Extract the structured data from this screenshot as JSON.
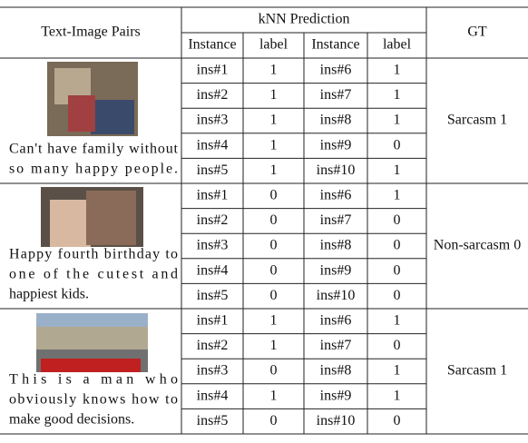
{
  "header": {
    "col1": "Text-Image Pairs",
    "knn": "kNN Prediction",
    "gt": "GT",
    "sub": [
      "Instance",
      "label",
      "Instance",
      "label"
    ]
  },
  "groups": [
    {
      "caption": [
        "Can't have family without",
        "so many happy people."
      ],
      "rows": [
        [
          "ins#1",
          1,
          "ins#6",
          1
        ],
        [
          "ins#2",
          1,
          "ins#7",
          1
        ],
        [
          "ins#3",
          1,
          "ins#8",
          1
        ],
        [
          "ins#4",
          1,
          "ins#9",
          0
        ],
        [
          "ins#5",
          1,
          "ins#10",
          1
        ]
      ],
      "gt": "Sarcasm 1"
    },
    {
      "caption": [
        "Happy fourth birthday to",
        "one of the cutest and",
        "happiest kids."
      ],
      "rows": [
        [
          "ins#1",
          0,
          "ins#6",
          1
        ],
        [
          "ins#2",
          0,
          "ins#7",
          0
        ],
        [
          "ins#3",
          0,
          "ins#8",
          0
        ],
        [
          "ins#4",
          0,
          "ins#9",
          0
        ],
        [
          "ins#5",
          0,
          "ins#10",
          0
        ]
      ],
      "gt": "Non-sarcasm 0"
    },
    {
      "caption": [
        "This is a man who",
        "obviously knows how to",
        "make good decisions."
      ],
      "rows": [
        [
          "ins#1",
          1,
          "ins#6",
          1
        ],
        [
          "ins#2",
          1,
          "ins#7",
          0
        ],
        [
          "ins#3",
          0,
          "ins#8",
          1
        ],
        [
          "ins#4",
          1,
          "ins#9",
          1
        ],
        [
          "ins#5",
          0,
          "ins#10",
          0
        ]
      ],
      "gt": "Sarcasm 1"
    }
  ]
}
